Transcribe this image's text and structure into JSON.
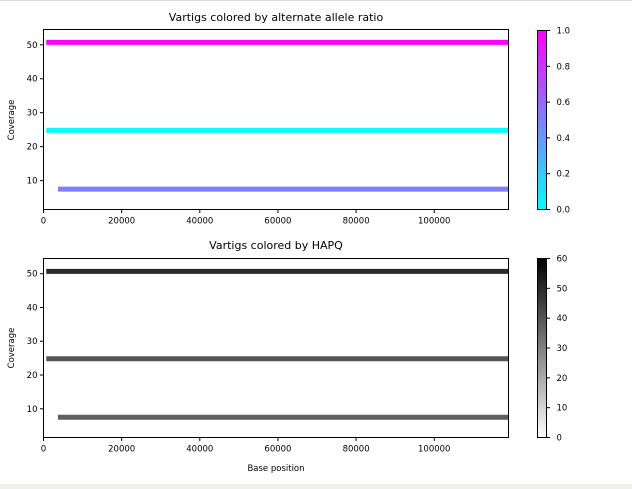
{
  "chart_data": [
    {
      "type": "line",
      "title": "Vartigs colored by alternate allele ratio",
      "xlabel": "",
      "ylabel": "Coverage",
      "xlim": [
        0,
        119000
      ],
      "ylim": [
        1.5,
        54.5
      ],
      "xticks": [
        0,
        20000,
        40000,
        60000,
        80000,
        100000
      ],
      "yticks": [
        10,
        20,
        30,
        40,
        50
      ],
      "grid": false,
      "segments": [
        {
          "x": [
            700,
            119000
          ],
          "y": 50.7,
          "value": 1.0,
          "color": "#ff00ff"
        },
        {
          "x": [
            700,
            119000
          ],
          "y": 24.8,
          "value": 0.0,
          "color": "#00ffff"
        },
        {
          "x": [
            3700,
            119000
          ],
          "y": 7.5,
          "value": 0.5,
          "color": "#7f7fff"
        }
      ],
      "colorbar": {
        "min": 0.0,
        "max": 1.0,
        "ticks": [
          "0.0",
          "0.2",
          "0.4",
          "0.6",
          "0.8",
          "1.0"
        ],
        "tick_values": [
          0.0,
          0.2,
          0.4,
          0.6,
          0.8,
          1.0
        ],
        "colormap": [
          "#00ffff",
          "#ff00ff"
        ]
      }
    },
    {
      "type": "line",
      "title": "Vartigs colored by HAPQ",
      "xlabel": "Base position",
      "ylabel": "Coverage",
      "xlim": [
        0,
        119000
      ],
      "ylim": [
        1.5,
        54.5
      ],
      "xticks": [
        0,
        20000,
        40000,
        60000,
        80000,
        100000
      ],
      "yticks": [
        10,
        20,
        30,
        40,
        50
      ],
      "grid": false,
      "segments": [
        {
          "x": [
            700,
            119000
          ],
          "y": 50.7,
          "value": 52,
          "color": "#2b2b2b"
        },
        {
          "x": [
            700,
            119000
          ],
          "y": 24.8,
          "value": 40,
          "color": "#555555"
        },
        {
          "x": [
            3700,
            119000
          ],
          "y": 7.5,
          "value": 37,
          "color": "#5e5e5e"
        }
      ],
      "colorbar": {
        "min": 0,
        "max": 60,
        "ticks": [
          "0",
          "10",
          "20",
          "30",
          "40",
          "50",
          "60"
        ],
        "tick_values": [
          0,
          10,
          20,
          30,
          40,
          50,
          60
        ],
        "colormap": [
          "#ffffff",
          "#000000"
        ]
      }
    }
  ]
}
